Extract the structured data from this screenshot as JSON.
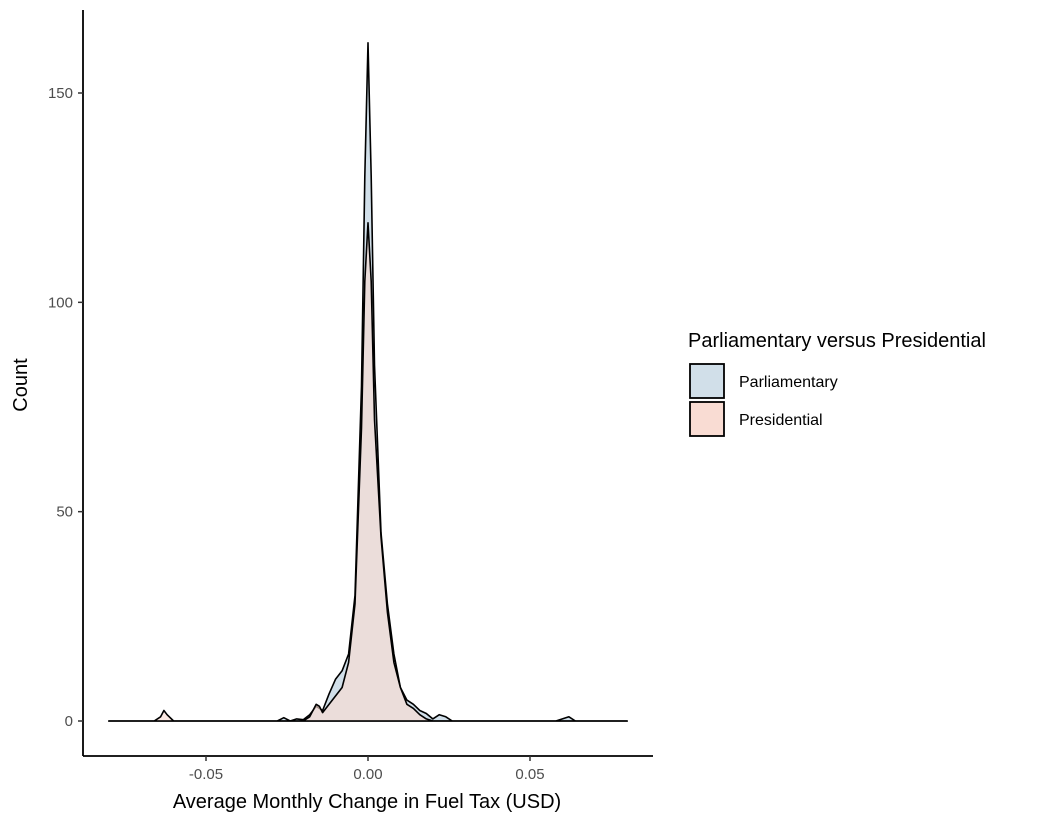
{
  "chart_data": {
    "type": "area",
    "xlabel": "Average Monthly Change in Fuel Tax (USD)",
    "ylabel": "Count",
    "xlim": [
      -0.08,
      0.08
    ],
    "ylim": [
      0,
      162
    ],
    "x_ticks": [
      -0.05,
      0.0,
      0.05
    ],
    "x_tick_labels": [
      "-0.05",
      "0.00",
      "0.05"
    ],
    "y_ticks": [
      0,
      50,
      100,
      150
    ],
    "y_tick_labels": [
      "0",
      "50",
      "100",
      "150"
    ],
    "grid": false,
    "legend": {
      "title": "Parliamentary versus Presidential",
      "position": "right",
      "entries": [
        "Parliamentary",
        "Presidential"
      ]
    },
    "series": [
      {
        "name": "Parliamentary",
        "color": "#d1dfe9",
        "points": [
          [
            -0.08,
            0
          ],
          [
            -0.04,
            0
          ],
          [
            -0.028,
            0
          ],
          [
            -0.026,
            0.8
          ],
          [
            -0.024,
            0
          ],
          [
            -0.022,
            0.5
          ],
          [
            -0.02,
            0.3
          ],
          [
            -0.018,
            1.5
          ],
          [
            -0.016,
            3.5
          ],
          [
            -0.014,
            2.5
          ],
          [
            -0.012,
            6.5
          ],
          [
            -0.01,
            10
          ],
          [
            -0.008,
            12
          ],
          [
            -0.006,
            16
          ],
          [
            -0.004,
            30
          ],
          [
            -0.002,
            80
          ],
          [
            -0.001,
            130
          ],
          [
            0.0,
            162
          ],
          [
            0.001,
            130
          ],
          [
            0.002,
            85
          ],
          [
            0.004,
            45
          ],
          [
            0.006,
            28
          ],
          [
            0.008,
            16
          ],
          [
            0.01,
            8
          ],
          [
            0.012,
            5
          ],
          [
            0.014,
            4
          ],
          [
            0.016,
            2.5
          ],
          [
            0.018,
            1.8
          ],
          [
            0.02,
            0.5
          ],
          [
            0.022,
            1.5
          ],
          [
            0.024,
            1
          ],
          [
            0.026,
            0
          ],
          [
            0.03,
            0
          ],
          [
            0.058,
            0
          ],
          [
            0.06,
            0.5
          ],
          [
            0.062,
            1
          ],
          [
            0.064,
            0
          ],
          [
            0.08,
            0
          ]
        ]
      },
      {
        "name": "Presidential",
        "color": "#f9dcd3",
        "points": [
          [
            -0.08,
            0
          ],
          [
            -0.066,
            0
          ],
          [
            -0.064,
            1
          ],
          [
            -0.063,
            2.5
          ],
          [
            -0.062,
            1.5
          ],
          [
            -0.06,
            0
          ],
          [
            -0.04,
            0
          ],
          [
            -0.02,
            0
          ],
          [
            -0.018,
            1
          ],
          [
            -0.016,
            4
          ],
          [
            -0.015,
            3.5
          ],
          [
            -0.014,
            2
          ],
          [
            -0.012,
            4
          ],
          [
            -0.01,
            6
          ],
          [
            -0.008,
            8
          ],
          [
            -0.006,
            14
          ],
          [
            -0.004,
            28
          ],
          [
            -0.002,
            70
          ],
          [
            -0.001,
            105
          ],
          [
            0.0,
            119
          ],
          [
            0.001,
            105
          ],
          [
            0.002,
            72
          ],
          [
            0.004,
            44
          ],
          [
            0.006,
            26
          ],
          [
            0.008,
            14
          ],
          [
            0.01,
            8
          ],
          [
            0.012,
            4
          ],
          [
            0.014,
            3
          ],
          [
            0.016,
            1.5
          ],
          [
            0.018,
            0.5
          ],
          [
            0.02,
            0
          ],
          [
            0.08,
            0
          ]
        ]
      }
    ]
  }
}
